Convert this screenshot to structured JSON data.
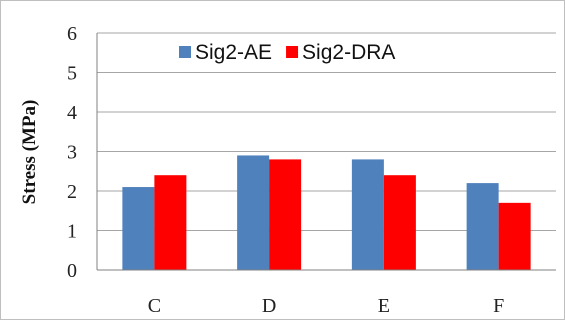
{
  "chart_data": {
    "type": "bar",
    "categories": [
      "C",
      "D",
      "E",
      "F"
    ],
    "series": [
      {
        "name": "Sig2-AE",
        "values": [
          2.1,
          2.9,
          2.8,
          2.2
        ],
        "color": "#4f81bd"
      },
      {
        "name": "Sig2-DRA",
        "values": [
          2.4,
          2.8,
          2.4,
          1.7
        ],
        "color": "#ff0000"
      }
    ],
    "title": "",
    "xlabel": "",
    "ylabel": "Stress (MPa)",
    "ylim": [
      0,
      6
    ],
    "yticks": [
      0,
      1,
      2,
      3,
      4,
      5,
      6
    ],
    "grid": true,
    "legend_position": "top-center"
  }
}
